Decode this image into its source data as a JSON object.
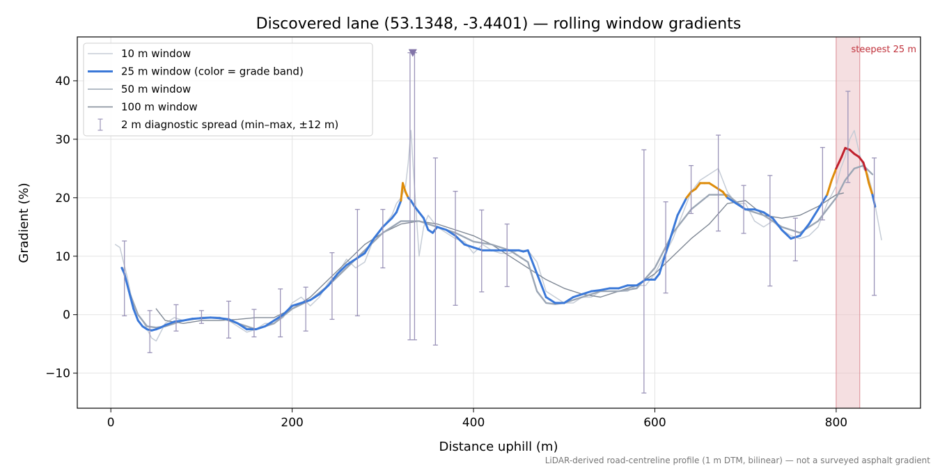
{
  "chart_data": {
    "type": "line",
    "title": "Discovered lane (53.1348, -3.4401) — rolling window gradients",
    "xlabel": "Distance uphill (m)",
    "ylabel": "Gradient (%)",
    "xlim": [
      -37,
      893
    ],
    "ylim": [
      -16,
      47.5
    ],
    "x_ticks": [
      0,
      200,
      400,
      600,
      800
    ],
    "x_tick_labels": [
      "0",
      "200",
      "400",
      "600",
      "800"
    ],
    "y_ticks": [
      -10,
      0,
      10,
      20,
      30,
      40
    ],
    "y_tick_labels": [
      "−10",
      "0",
      "10",
      "20",
      "30",
      "40"
    ],
    "grid": true,
    "legend_position": "top-left",
    "footnote": "LiDAR-derived road-centreline profile (1 m DTM, bilinear) — not a surveyed asphalt gradient",
    "colors": {
      "w10": "#c5ccd6",
      "w25_band_blue": "#3a78d8",
      "w25_band_orange": "#de8c0a",
      "w25_band_red": "#c0202c",
      "w50": "#9aa5b4",
      "w100": "#7e8794",
      "errorbar": "#9a93b8",
      "marker": "#8274a8",
      "shade": "#e9b7bd",
      "shade_label": "#c0303a"
    },
    "legend": [
      {
        "label": "10 m window",
        "kind": "line",
        "color": "#c5ccd6",
        "width": 1.4
      },
      {
        "label": "25 m window (color = grade band)",
        "kind": "line",
        "color": "#3a78d8",
        "width": 3
      },
      {
        "label": "50 m window",
        "kind": "line",
        "color": "#9aa5b4",
        "width": 1.6
      },
      {
        "label": "100 m window",
        "kind": "line",
        "color": "#7e8794",
        "width": 1.4
      },
      {
        "label": "2 m diagnostic spread (min–max, ±12 m)",
        "kind": "errorbar",
        "color": "#9a93b8",
        "width": 1.2
      }
    ],
    "steepest_label": "steepest 25 m",
    "steepest_span": [
      800,
      826
    ],
    "peak_marker": {
      "x": 333,
      "y": 44.8
    },
    "grade_bands": {
      "orange_from": 20,
      "red_from": 25
    },
    "series": [
      {
        "name": "10 m window",
        "key": "w10",
        "x": [
          5,
          10,
          14,
          18,
          22,
          26,
          30,
          35,
          40,
          45,
          50,
          55,
          60,
          65,
          70,
          80,
          90,
          100,
          110,
          120,
          130,
          140,
          150,
          160,
          170,
          180,
          190,
          200,
          210,
          220,
          230,
          240,
          250,
          260,
          270,
          280,
          290,
          300,
          310,
          315,
          320,
          325,
          328,
          331,
          334,
          337,
          340,
          345,
          350,
          360,
          370,
          380,
          390,
          400,
          410,
          420,
          430,
          440,
          450,
          460,
          470,
          480,
          490,
          500,
          510,
          520,
          530,
          540,
          550,
          560,
          570,
          580,
          590,
          600,
          610,
          620,
          630,
          640,
          650,
          660,
          670,
          680,
          690,
          700,
          710,
          720,
          730,
          740,
          750,
          760,
          770,
          780,
          790,
          800,
          805,
          810,
          815,
          820,
          825,
          830,
          835,
          840,
          845,
          850
        ],
        "y": [
          12,
          11.5,
          9,
          6.5,
          3.5,
          1.5,
          0,
          -1,
          -2.5,
          -4,
          -4.5,
          -3,
          -1.5,
          -1,
          -0.5,
          -1,
          -0.8,
          -0.5,
          -0.4,
          -0.5,
          -1,
          -2,
          -3,
          -2.5,
          -1.5,
          -1.5,
          -0.5,
          2,
          3,
          1.5,
          3,
          5.5,
          7,
          9.5,
          8,
          9,
          13,
          15,
          17,
          19,
          20,
          22,
          26,
          31.5,
          24,
          17,
          10,
          15,
          17,
          15,
          14,
          13,
          12.5,
          10.5,
          12,
          11,
          10.5,
          10.5,
          11,
          11,
          9,
          4,
          3,
          2,
          2,
          3,
          3,
          4,
          4,
          4,
          4,
          5,
          5,
          7,
          10,
          13,
          17,
          21,
          23,
          24,
          25,
          21,
          19,
          19,
          16,
          15,
          16,
          14.5,
          13.5,
          13,
          13.5,
          15,
          19,
          22,
          25,
          27,
          30,
          31.5,
          28,
          25,
          24,
          21,
          17,
          12.8
        ]
      },
      {
        "name": "25 m window",
        "key": "w25",
        "x": [
          12,
          15,
          20,
          25,
          30,
          35,
          40,
          45,
          50,
          55,
          60,
          70,
          80,
          90,
          100,
          110,
          120,
          130,
          140,
          150,
          160,
          170,
          180,
          190,
          200,
          210,
          220,
          230,
          240,
          250,
          260,
          270,
          280,
          290,
          300,
          310,
          315,
          320,
          322,
          325,
          328,
          331,
          335,
          340,
          345,
          350,
          355,
          360,
          370,
          380,
          390,
          400,
          410,
          420,
          430,
          440,
          450,
          455,
          460,
          470,
          480,
          490,
          500,
          510,
          520,
          530,
          540,
          550,
          560,
          570,
          580,
          590,
          600,
          605,
          610,
          615,
          620,
          625,
          630,
          635,
          640,
          645,
          650,
          655,
          660,
          665,
          670,
          675,
          680,
          690,
          700,
          710,
          720,
          730,
          740,
          750,
          760,
          770,
          780,
          790,
          795,
          800,
          803,
          806,
          810,
          815,
          820,
          825,
          830,
          833,
          836,
          840,
          843
        ],
        "y": [
          8,
          7,
          4,
          1,
          -1,
          -2,
          -2.5,
          -2.7,
          -2.5,
          -2.2,
          -1.8,
          -1.2,
          -1,
          -0.7,
          -0.6,
          -0.5,
          -0.6,
          -0.8,
          -1.5,
          -2.5,
          -2.5,
          -2,
          -1,
          0,
          1.5,
          2,
          2.5,
          3.5,
          5,
          7,
          8.5,
          9.5,
          10.5,
          13,
          15,
          16.5,
          17.5,
          19.5,
          22.5,
          21,
          20,
          19.5,
          18.5,
          17.5,
          16.5,
          14.5,
          14,
          15,
          14.5,
          13.5,
          12,
          11.5,
          11,
          11,
          11,
          11,
          11,
          10.8,
          11,
          7,
          3,
          2,
          2,
          3,
          3.5,
          4,
          4.2,
          4.5,
          4.5,
          5,
          5,
          6,
          6,
          7,
          9.5,
          12,
          14.5,
          17,
          18.5,
          20,
          21,
          21.5,
          22.5,
          22.5,
          22.5,
          22,
          21.5,
          21,
          20,
          19,
          18,
          18,
          17.5,
          16.5,
          14.5,
          13,
          13.5,
          15.5,
          18,
          20.5,
          23,
          25,
          26,
          27,
          28.5,
          28.2,
          27.5,
          27,
          26,
          24.5,
          22.5,
          20.5,
          18.5
        ]
      },
      {
        "name": "50 m window",
        "key": "w50",
        "x": [
          13,
          20,
          30,
          40,
          50,
          60,
          70,
          80,
          90,
          100,
          120,
          140,
          160,
          180,
          200,
          220,
          240,
          260,
          280,
          300,
          320,
          340,
          360,
          380,
          400,
          420,
          440,
          460,
          470,
          480,
          490,
          500,
          520,
          540,
          560,
          580,
          600,
          610,
          620,
          640,
          660,
          680,
          700,
          720,
          740,
          760,
          780,
          800,
          810,
          820,
          830,
          840
        ],
        "y": [
          8,
          4,
          0,
          -2,
          -2.2,
          -2,
          -1.5,
          -1,
          -0.8,
          -0.5,
          -0.5,
          -1.5,
          -2.5,
          -1.5,
          1,
          2.5,
          5,
          8,
          11,
          14,
          16,
          16,
          15,
          14,
          12.5,
          12,
          11,
          9,
          4,
          2,
          1.8,
          2,
          3,
          4,
          4,
          4.5,
          8,
          11,
          14,
          18,
          20.5,
          20.5,
          18,
          17,
          15,
          14,
          16,
          20,
          23,
          25,
          25.5,
          24
        ]
      },
      {
        "name": "100 m window",
        "key": "w100",
        "x": [
          50,
          60,
          80,
          100,
          120,
          140,
          160,
          180,
          200,
          220,
          240,
          260,
          280,
          300,
          320,
          340,
          360,
          380,
          400,
          420,
          440,
          460,
          480,
          500,
          520,
          540,
          560,
          580,
          600,
          620,
          640,
          660,
          680,
          700,
          720,
          740,
          760,
          780,
          800,
          808
        ],
        "y": [
          1,
          -1,
          -1.5,
          -1,
          -1,
          -0.8,
          -0.5,
          -0.5,
          1,
          3,
          6,
          9,
          12,
          14,
          15.5,
          16,
          15.5,
          14.5,
          13.5,
          12,
          10,
          8,
          6,
          4.5,
          3.5,
          3,
          4,
          5,
          7,
          10,
          13,
          15.5,
          19,
          19.5,
          17,
          16.5,
          17,
          18.5,
          20.5,
          20.8
        ]
      }
    ],
    "error_bars": {
      "x": [
        15,
        43,
        72,
        100,
        130,
        158,
        187,
        215,
        244,
        272,
        300,
        330,
        335,
        358,
        380,
        409,
        437,
        588,
        612,
        640,
        670,
        698,
        727,
        755,
        785,
        813,
        842
      ],
      "low": [
        -0.2,
        -6.5,
        -2.8,
        -1.5,
        -4,
        -3.8,
        -3.8,
        -2.8,
        -0.8,
        -0.2,
        8,
        -4.3,
        -4.3,
        -5.2,
        1.6,
        3.9,
        4.8,
        -13.4,
        3.7,
        17.3,
        14.3,
        13.9,
        4.9,
        9.2,
        16.2,
        22.6,
        3.3
      ],
      "high": [
        12.6,
        0.7,
        1.7,
        0.7,
        2.3,
        0.9,
        4.4,
        4.7,
        10.6,
        18,
        18,
        44.8,
        44.8,
        26.8,
        21.1,
        17.9,
        15.5,
        28.2,
        19.3,
        25.5,
        30.7,
        22.1,
        23.8,
        16.5,
        28.6,
        38.2,
        26.8
      ]
    }
  }
}
